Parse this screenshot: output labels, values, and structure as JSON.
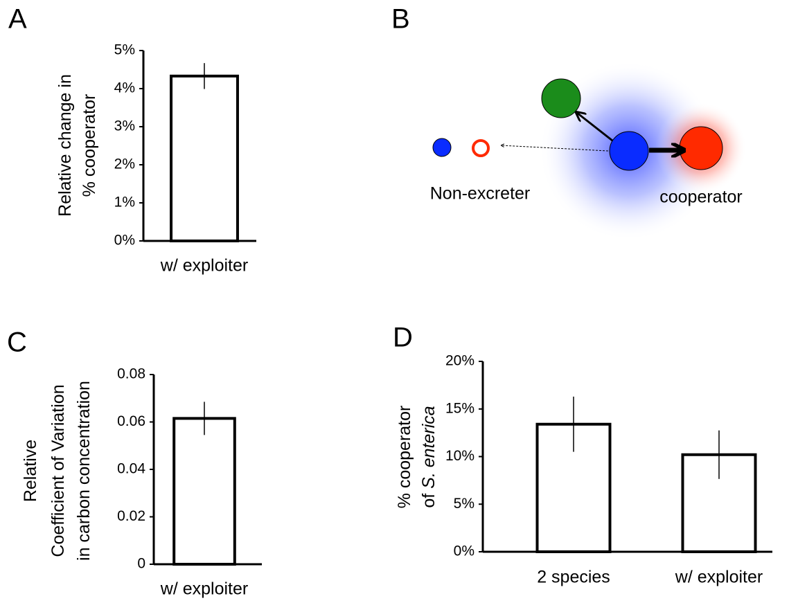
{
  "chart_data": [
    {
      "type": "bar",
      "panel_label": "A",
      "ylabel": [
        [
          {
            "text": "Relative change in"
          }
        ],
        [
          {
            "text": "% cooperator"
          }
        ]
      ],
      "categories": [
        "w/ exploiter"
      ],
      "values": [
        4.33
      ],
      "errors": [
        0.34
      ],
      "ylim": [
        0,
        5
      ],
      "yticks": [
        {
          "value": 0,
          "label": "0%"
        },
        {
          "value": 1,
          "label": "1%"
        },
        {
          "value": 2,
          "label": "2%"
        },
        {
          "value": 3,
          "label": "3%"
        },
        {
          "value": 4,
          "label": "4%"
        },
        {
          "value": 5,
          "label": "5%"
        }
      ],
      "color": "#ffffff"
    },
    {
      "type": "bar",
      "panel_label": "C",
      "ylabel": [
        [
          {
            "text": "Relative"
          }
        ],
        [
          {
            "text": "Coefficient of Variation"
          }
        ],
        [
          {
            "text": "in carbon concentration"
          }
        ]
      ],
      "categories": [
        "w/ exploiter"
      ],
      "values": [
        0.0615
      ],
      "errors": [
        0.007
      ],
      "ylim": [
        0,
        0.08
      ],
      "yticks": [
        0,
        0.02,
        0.04,
        0.06,
        0.08
      ],
      "color": "#ffffff"
    },
    {
      "type": "bar",
      "panel_label": "D",
      "ylabel": [
        [
          {
            "text": "% cooperator"
          }
        ],
        [
          {
            "text": "of "
          },
          {
            "text": "S. enterica",
            "style": "italic"
          }
        ]
      ],
      "categories": [
        "2 species",
        "w/ exploiter"
      ],
      "values": [
        13.4,
        10.2
      ],
      "errors": [
        2.9,
        2.55
      ],
      "ylim": [
        0,
        20
      ],
      "yticks": [
        {
          "value": 0,
          "label": "0%"
        },
        {
          "value": 5,
          "label": "5%"
        },
        {
          "value": 10,
          "label": "10%"
        },
        {
          "value": 15,
          "label": "15%"
        },
        {
          "value": 20,
          "label": "20%"
        }
      ],
      "color": "#ffffff"
    }
  ],
  "diagram": {
    "panel_label": "B",
    "labels": [
      "Non-excreter",
      "cooperator"
    ]
  }
}
